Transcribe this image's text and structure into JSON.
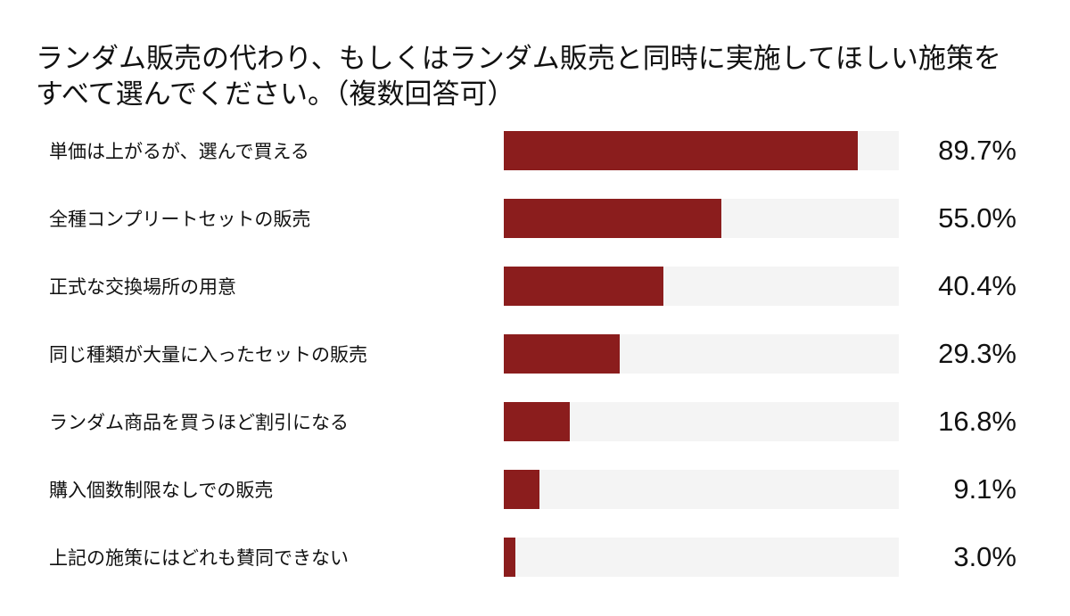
{
  "page": {
    "background_color": "#ffffff",
    "text_color": "#111111"
  },
  "title_lines": {
    "line1": "ランダム販売の代わり、もしくはランダム販売と同時に実施してほしい施策を",
    "line2": "すべて選んでください。（複数回答可）"
  },
  "chart_data": {
    "type": "bar",
    "orientation": "horizontal",
    "title": "ランダム販売の代わり、もしくはランダム販売と同時に実施してほしい施策をすべて選んでください。（複数回答可）",
    "categories": [
      "単価は上がるが、選んで買える",
      "全種コンプリートセットの販売",
      "正式な交換場所の用意",
      "同じ種類が大量に入ったセットの販売",
      "ランダム商品を買うほど割引になる",
      "購入個数制限なしでの販売",
      "上記の施策にはどれも賛同できない"
    ],
    "values": [
      89.7,
      55.0,
      40.4,
      29.3,
      16.8,
      9.1,
      3.0
    ],
    "value_labels": [
      "89.7%",
      "55.0%",
      "40.4%",
      "29.3%",
      "16.8%",
      "9.1%",
      "3.0%"
    ],
    "xlim": [
      0,
      100
    ],
    "grid": false,
    "legend": false,
    "bar_color": "#8b1d1d",
    "track_color": "#f4f4f4"
  }
}
